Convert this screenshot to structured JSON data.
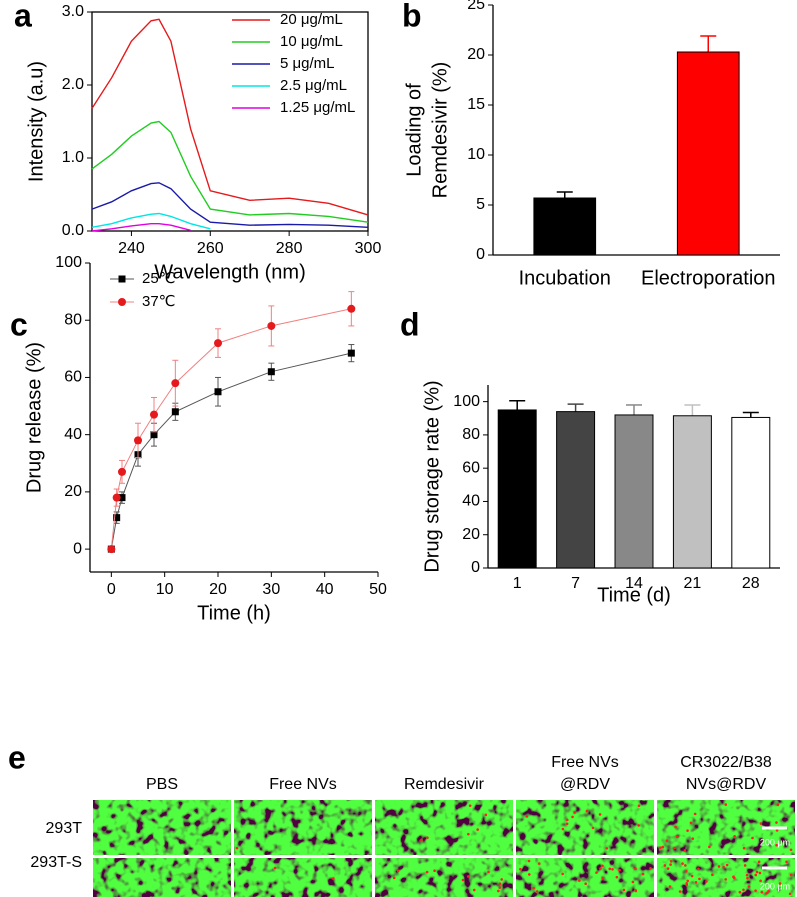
{
  "chart_data": [
    {
      "type": "line",
      "panel_label": "a",
      "xlabel": "Wavelength (nm)",
      "ylabel": "Intensity (a.u)",
      "x": [
        230,
        235,
        240,
        245,
        247,
        250,
        255,
        260,
        270,
        280,
        290,
        300
      ],
      "series": [
        {
          "name": "20 μg/mL",
          "color": "#e41a1c",
          "values": [
            1.68,
            2.1,
            2.6,
            2.88,
            2.9,
            2.6,
            1.4,
            0.55,
            0.42,
            0.45,
            0.38,
            0.22
          ]
        },
        {
          "name": "10 μg/mL",
          "color": "#22cc22",
          "values": [
            0.85,
            1.05,
            1.3,
            1.48,
            1.5,
            1.35,
            0.75,
            0.3,
            0.22,
            0.24,
            0.2,
            0.12
          ]
        },
        {
          "name": "5 μg/mL",
          "color": "#1a1aa8",
          "values": [
            0.3,
            0.4,
            0.55,
            0.65,
            0.66,
            0.58,
            0.3,
            0.12,
            0.08,
            0.09,
            0.08,
            0.05
          ]
        },
        {
          "name": "2.5 μg/mL",
          "color": "#00e5e5",
          "values": [
            0.05,
            0.1,
            0.18,
            0.23,
            0.24,
            0.2,
            0.1,
            0.03,
            null,
            null,
            null,
            null
          ]
        },
        {
          "name": "1.25 μg/mL",
          "color": "#e000e0",
          "values": [
            0,
            0.03,
            0.07,
            0.1,
            0.1,
            0.08,
            0.01,
            null,
            null,
            null,
            null,
            null
          ]
        }
      ],
      "xlim": [
        230,
        300
      ],
      "xticks": [
        240,
        260,
        280,
        300
      ],
      "ylim": [
        0,
        3
      ],
      "yticks": [
        {
          "value": 0,
          "label": "0.0"
        },
        {
          "value": 1,
          "label": "1.0"
        },
        {
          "value": 2,
          "label": "2.0"
        },
        {
          "value": 3,
          "label": "3.0"
        }
      ],
      "legend": "top-right"
    },
    {
      "type": "bar",
      "panel_label": "b",
      "ylabel_lines": [
        "Loading of",
        "Remdesivir (%)"
      ],
      "categories": [
        "Incubation",
        "Electroporation"
      ],
      "values": [
        5.7,
        20.3
      ],
      "errors": [
        0.6,
        1.6
      ],
      "colors": [
        "#000000",
        "#ff0000"
      ],
      "ylim": [
        0,
        25
      ],
      "yticks": [
        0,
        5,
        10,
        15,
        20,
        25
      ]
    },
    {
      "type": "line",
      "panel_label": "c",
      "xlabel": "Time (h)",
      "ylabel": "Drug release (%)",
      "x": [
        0,
        1,
        2,
        5,
        8,
        12,
        20,
        30,
        45
      ],
      "series": [
        {
          "name": "25℃",
          "color": "#000000",
          "line_color": "#555555",
          "marker": "square",
          "values": [
            0,
            11,
            18,
            33,
            40,
            48,
            55,
            62,
            68.5
          ],
          "errors": [
            0,
            2,
            2,
            4,
            4,
            3,
            5,
            3,
            3
          ]
        },
        {
          "name": "37℃",
          "color": "#e41a1c",
          "line_color": "#f08080",
          "marker": "circle",
          "values": [
            0,
            18,
            27,
            38,
            47,
            58,
            72,
            78,
            84
          ],
          "errors": [
            0,
            3,
            4,
            6,
            6,
            8,
            5,
            7,
            6
          ]
        }
      ],
      "xlim": [
        -4,
        50
      ],
      "xticks": [
        0,
        10,
        20,
        30,
        40,
        50
      ],
      "ylim": [
        -8,
        100
      ],
      "yticks": [
        0,
        20,
        40,
        60,
        80,
        100
      ],
      "legend": "top-left"
    },
    {
      "type": "bar",
      "panel_label": "d",
      "xlabel": "Time (d)",
      "ylabel": "Drug storage rate (%)",
      "categories": [
        "1",
        "7",
        "14",
        "21",
        "28"
      ],
      "values": [
        95,
        94,
        92,
        91.5,
        90.5
      ],
      "errors": [
        5.5,
        4.5,
        6,
        6.5,
        3
      ],
      "colors": [
        "#000000",
        "#444444",
        "#888888",
        "#c0c0c0",
        "#ffffff"
      ],
      "ylim": [
        0,
        110
      ],
      "yticks": [
        0,
        20,
        40,
        60,
        80,
        100
      ]
    }
  ],
  "panel_e": {
    "panel_label": "e",
    "columns": [
      [
        "PBS"
      ],
      [
        "Free NVs"
      ],
      [
        "Remdesivir"
      ],
      [
        "Free NVs",
        "@RDV"
      ],
      [
        "CR3022/B38",
        "NVs@RDV"
      ]
    ],
    "rows": [
      "293T",
      "293T-S"
    ],
    "scale_bar": "200 μm"
  }
}
